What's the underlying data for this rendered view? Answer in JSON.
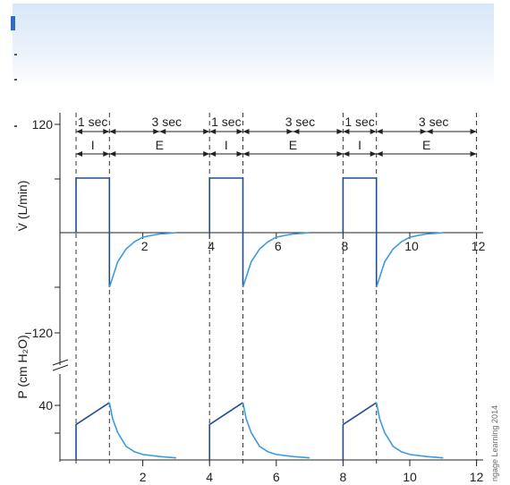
{
  "header_band": {
    "color": "#dde9f7",
    "accent": "#2b6fc4"
  },
  "credit": "ngage Learning 2014",
  "chart_data": [
    {
      "type": "line",
      "ylabel": "V̇ (L/min)",
      "xlim": [
        0,
        12
      ],
      "x_ticks": [
        "2",
        "4",
        "6",
        "8",
        "10",
        "12"
      ],
      "y_ticks": [
        "120",
        "−120"
      ],
      "waveform": "square inspiratory flow, exponential expiratory flow",
      "line_color_inspiration": "#1f4f8f",
      "line_color_expiration": "#3a9be0",
      "breaths": [
        {
          "start": 0,
          "end_inspiration": 1,
          "end_cycle": 4
        },
        {
          "start": 4,
          "end_inspiration": 5,
          "end_cycle": 8
        },
        {
          "start": 8,
          "end_inspiration": 9,
          "end_cycle": 12
        }
      ],
      "timing_labels": {
        "inspiration_time": "1 sec",
        "expiration_time": "3 sec",
        "inspiration": "I",
        "expiration": "E"
      },
      "series": [
        {
          "points": [
            [
              0,
              0
            ],
            [
              0,
              60
            ],
            [
              1,
              60
            ],
            [
              1,
              -60
            ],
            [
              1.25,
              -32
            ],
            [
              1.5,
              -18
            ],
            [
              1.75,
              -10
            ],
            [
              2,
              -5
            ],
            [
              2.25,
              -3
            ],
            [
              2.5,
              -1.5
            ],
            [
              2.75,
              -0.8
            ],
            [
              3,
              0
            ]
          ]
        }
      ]
    },
    {
      "type": "line",
      "ylabel": "P (cm H₂O)",
      "xlim": [
        0,
        12
      ],
      "x_ticks": [
        "2",
        "4",
        "6",
        "8",
        "10",
        "12"
      ],
      "y_ticks": [
        "40"
      ],
      "y_axis_break": true,
      "series": [
        {
          "points": [
            [
              0,
              0
            ],
            [
              0,
              26
            ],
            [
              1,
              42
            ],
            [
              1.1,
              30
            ],
            [
              1.25,
              20
            ],
            [
              1.5,
              10
            ],
            [
              1.75,
              6
            ],
            [
              2,
              4
            ],
            [
              2.5,
              2.5
            ],
            [
              3,
              1.5
            ]
          ]
        }
      ]
    }
  ]
}
